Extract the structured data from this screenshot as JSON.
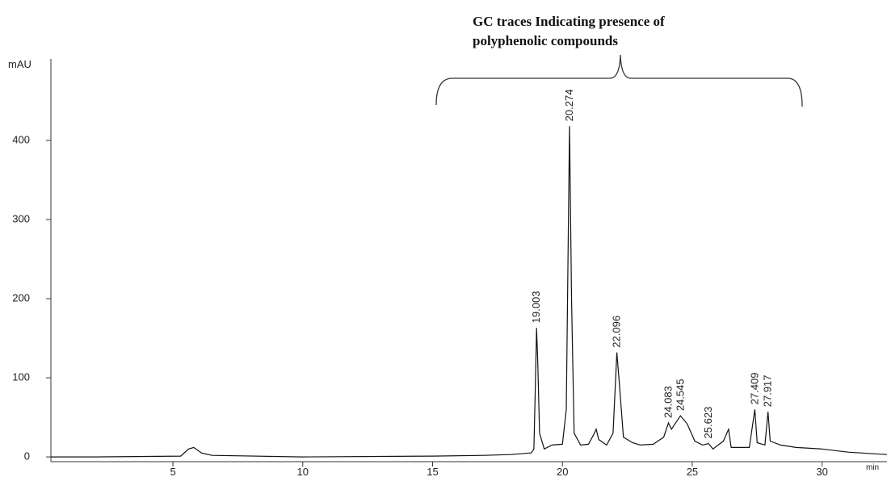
{
  "chart_data": {
    "type": "line",
    "annotation": [
      "GC traces Indicating presence of",
      "polyphenolic compounds"
    ],
    "y_label": "mAU",
    "x_label": "min",
    "xlim": [
      0.3,
      32.5
    ],
    "ylim": [
      -6,
      503
    ],
    "xticks": [
      5,
      10,
      15,
      20,
      25,
      30
    ],
    "yticks": [
      0,
      100,
      200,
      300,
      400
    ],
    "x": [
      0.3,
      2,
      5.3,
      5.6,
      5.8,
      6.1,
      6.5,
      10,
      15,
      17,
      18,
      18.8,
      18.9,
      18.95,
      19.003,
      19.05,
      19.12,
      19.3,
      19.6,
      20.0,
      20.15,
      20.274,
      20.35,
      20.45,
      20.7,
      21.0,
      21.2,
      21.3,
      21.4,
      21.7,
      21.95,
      22.096,
      22.2,
      22.35,
      22.7,
      23.0,
      23.5,
      23.9,
      24.083,
      24.2,
      24.545,
      24.8,
      25.1,
      25.4,
      25.623,
      25.8,
      26.2,
      26.4,
      26.5,
      27.2,
      27.409,
      27.5,
      27.8,
      27.917,
      28.0,
      28.4,
      29,
      30,
      31,
      32.5
    ],
    "series": [
      {
        "color": "#111111",
        "values": [
          0,
          0,
          1,
          10,
          12,
          5,
          2,
          0,
          1,
          2,
          3,
          5,
          10,
          80,
          163,
          120,
          30,
          10,
          15,
          16,
          60,
          418,
          200,
          30,
          15,
          16,
          28,
          35,
          22,
          15,
          30,
          132,
          90,
          25,
          18,
          15,
          16,
          25,
          43,
          35,
          52,
          42,
          20,
          15,
          17,
          10,
          20,
          35,
          12,
          12,
          60,
          18,
          15,
          57,
          20,
          15,
          12,
          10,
          6,
          3
        ]
      }
    ],
    "peaks": {
      "x": [
        19.003,
        20.274,
        22.096,
        24.083,
        24.545,
        25.623,
        27.409,
        27.917
      ],
      "values": [
        163,
        418,
        132,
        43,
        52,
        17,
        60,
        57
      ]
    }
  }
}
